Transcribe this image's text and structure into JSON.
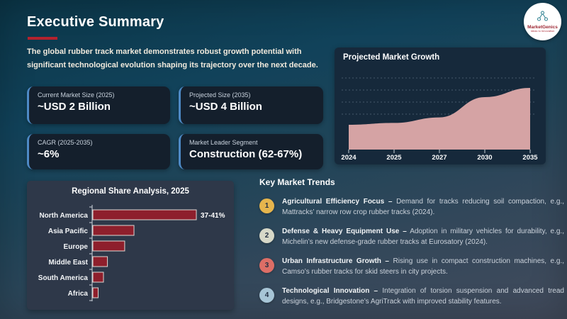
{
  "slide": {
    "title": "Executive Summary",
    "intro": "The global rubber track market demonstrates robust growth potential with significant technological evolution shaping its trajectory over the next decade.",
    "logo": {
      "name": "MarketGenics",
      "tagline": "Ideas to Innovation"
    },
    "accent_colors": {
      "underline_red": "#b3222e",
      "card_border_blue": "#4e8ac6"
    }
  },
  "stats": [
    {
      "label": "Current Market Size (2025)",
      "value": "~USD 2 Billion"
    },
    {
      "label": "Projected Size (2035)",
      "value": "~USD 4 Billion"
    },
    {
      "label": "CAGR (2025-2035)",
      "value": "~6%"
    },
    {
      "label": "Market Leader Segment",
      "value": "Construction (62-67%)"
    }
  ],
  "chart_data": [
    {
      "type": "area",
      "title": "Projected Market Growth",
      "x_labels": [
        "2024",
        "2025",
        "2027",
        "2030",
        "2035"
      ],
      "values": [
        2.0,
        2.1,
        2.4,
        3.5,
        4.0
      ],
      "unit": "USD Billion (approx, implied by slide stats)",
      "grid": "horizontal-dashed",
      "legend": "none",
      "fill_color": "#d5a3a4"
    },
    {
      "type": "bar",
      "orientation": "horizontal",
      "title": "Regional Share Analysis, 2025",
      "categories": [
        "North America",
        "Asia Pacific",
        "Europe",
        "Middle East",
        "South America",
        "Africa"
      ],
      "values": [
        39,
        15.5,
        12,
        5.5,
        4,
        2
      ],
      "value_labels": [
        "37-41%",
        "",
        "",
        "",
        "",
        ""
      ],
      "xlim": [
        0,
        43
      ],
      "grid": "off",
      "bar_color": "#8e1f2c"
    }
  ],
  "trends": {
    "heading": "Key Market Trends",
    "items": [
      {
        "num": "1",
        "color": "#e6b54d",
        "lead": "Agricultural Efficiency Focus –",
        "body": "Demand for tracks reducing soil compaction, e.g., Mattracks’ narrow row crop rubber tracks (2024)."
      },
      {
        "num": "2",
        "color": "#d6d8c8",
        "lead": "Defense & Heavy Equipment Use –",
        "body": "Adoption in military vehicles for durability, e.g., Michelin’s new defense-grade rubber tracks at Eurosatory (2024)."
      },
      {
        "num": "3",
        "color": "#dd6e66",
        "lead": "Urban Infrastructure Growth –",
        "body": "Rising use in compact construction machines, e.g., Camso’s rubber tracks for skid steers in city projects."
      },
      {
        "num": "4",
        "color": "#a7c5d6",
        "lead": "Technological Innovation –",
        "body": "Integration of torsion suspension and advanced tread designs, e.g., Bridgestone’s AgriTrack with improved stability features."
      }
    ]
  }
}
